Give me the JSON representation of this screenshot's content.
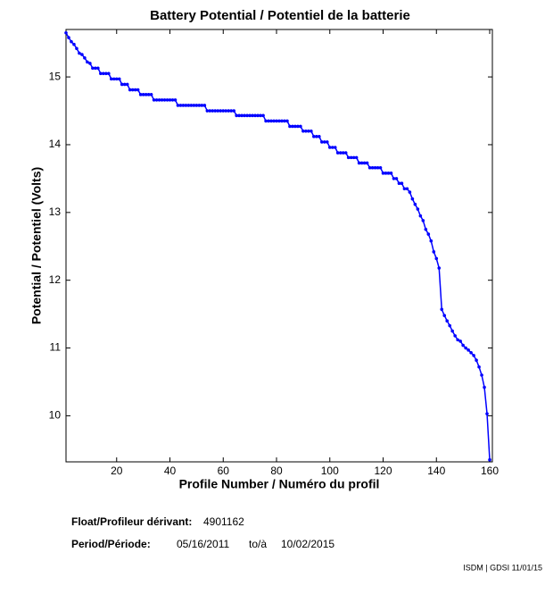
{
  "chart_data": {
    "type": "line",
    "title": "Battery Potential / Potentiel de la batterie",
    "x_label": "Profile Number / Numéro du profil",
    "y_label": "Potential / Potentiel (Volts)",
    "xlim": [
      1,
      161
    ],
    "xticks": [
      20,
      40,
      60,
      80,
      100,
      120,
      140,
      160
    ],
    "ylim": [
      9.32,
      15.7
    ],
    "yticks": [
      10,
      11,
      12,
      13,
      14,
      15
    ],
    "x": [
      1,
      2,
      3,
      4,
      5,
      6,
      7,
      8,
      9,
      10,
      11,
      12,
      13,
      14,
      15,
      16,
      17,
      18,
      19,
      20,
      21,
      22,
      23,
      24,
      25,
      26,
      27,
      28,
      29,
      30,
      31,
      32,
      33,
      34,
      35,
      36,
      37,
      38,
      39,
      40,
      41,
      42,
      43,
      44,
      45,
      46,
      47,
      48,
      49,
      50,
      51,
      52,
      53,
      54,
      55,
      56,
      57,
      58,
      59,
      60,
      61,
      62,
      63,
      64,
      65,
      66,
      67,
      68,
      69,
      70,
      71,
      72,
      73,
      74,
      75,
      76,
      77,
      78,
      79,
      80,
      81,
      82,
      83,
      84,
      85,
      86,
      87,
      88,
      89,
      90,
      91,
      92,
      93,
      94,
      95,
      96,
      97,
      98,
      99,
      100,
      101,
      102,
      103,
      104,
      105,
      106,
      107,
      108,
      109,
      110,
      111,
      112,
      113,
      114,
      115,
      116,
      117,
      118,
      119,
      120,
      121,
      122,
      123,
      124,
      125,
      126,
      127,
      128,
      129,
      130,
      131,
      132,
      133,
      134,
      135,
      136,
      137,
      138,
      139,
      140,
      141,
      142,
      143,
      144,
      145,
      146,
      147,
      148,
      149,
      150,
      151,
      152,
      153,
      154,
      155,
      156,
      157,
      158,
      159,
      160
    ],
    "series": [
      {
        "color": "#0000ff",
        "values": [
          15.65,
          15.58,
          15.52,
          15.48,
          15.42,
          15.35,
          15.33,
          15.28,
          15.22,
          15.2,
          15.13,
          15.13,
          15.13,
          15.05,
          15.05,
          15.05,
          15.05,
          14.97,
          14.97,
          14.97,
          14.97,
          14.89,
          14.89,
          14.89,
          14.81,
          14.81,
          14.81,
          14.81,
          14.74,
          14.74,
          14.74,
          14.74,
          14.74,
          14.66,
          14.66,
          14.66,
          14.66,
          14.66,
          14.66,
          14.66,
          14.66,
          14.66,
          14.58,
          14.58,
          14.58,
          14.58,
          14.58,
          14.58,
          14.58,
          14.58,
          14.58,
          14.58,
          14.58,
          14.5,
          14.5,
          14.5,
          14.5,
          14.5,
          14.5,
          14.5,
          14.5,
          14.5,
          14.5,
          14.5,
          14.43,
          14.43,
          14.43,
          14.43,
          14.43,
          14.43,
          14.43,
          14.43,
          14.43,
          14.43,
          14.43,
          14.35,
          14.35,
          14.35,
          14.35,
          14.35,
          14.35,
          14.35,
          14.35,
          14.35,
          14.27,
          14.27,
          14.27,
          14.27,
          14.27,
          14.2,
          14.2,
          14.2,
          14.2,
          14.12,
          14.12,
          14.12,
          14.04,
          14.04,
          14.04,
          13.96,
          13.96,
          13.96,
          13.88,
          13.88,
          13.88,
          13.88,
          13.81,
          13.81,
          13.81,
          13.81,
          13.73,
          13.73,
          13.73,
          13.73,
          13.66,
          13.66,
          13.66,
          13.66,
          13.66,
          13.58,
          13.58,
          13.58,
          13.58,
          13.5,
          13.5,
          13.43,
          13.43,
          13.35,
          13.35,
          13.3,
          13.2,
          13.12,
          13.05,
          12.95,
          12.88,
          12.75,
          12.68,
          12.58,
          12.42,
          12.32,
          12.18,
          11.57,
          11.48,
          11.4,
          11.33,
          11.25,
          11.18,
          11.12,
          11.1,
          11.04,
          11.0,
          10.97,
          10.93,
          10.89,
          10.82,
          10.72,
          10.6,
          10.42,
          10.03,
          9.35
        ]
      }
    ]
  },
  "footer": {
    "float_label": "Float/Profileur dérivant:",
    "float_id": "4901162",
    "period_label": "Period/Période:",
    "start": "05/16/2011",
    "to": "to/à",
    "end": "10/02/2015",
    "credit": "ISDM | GDSI 11/01/15"
  }
}
